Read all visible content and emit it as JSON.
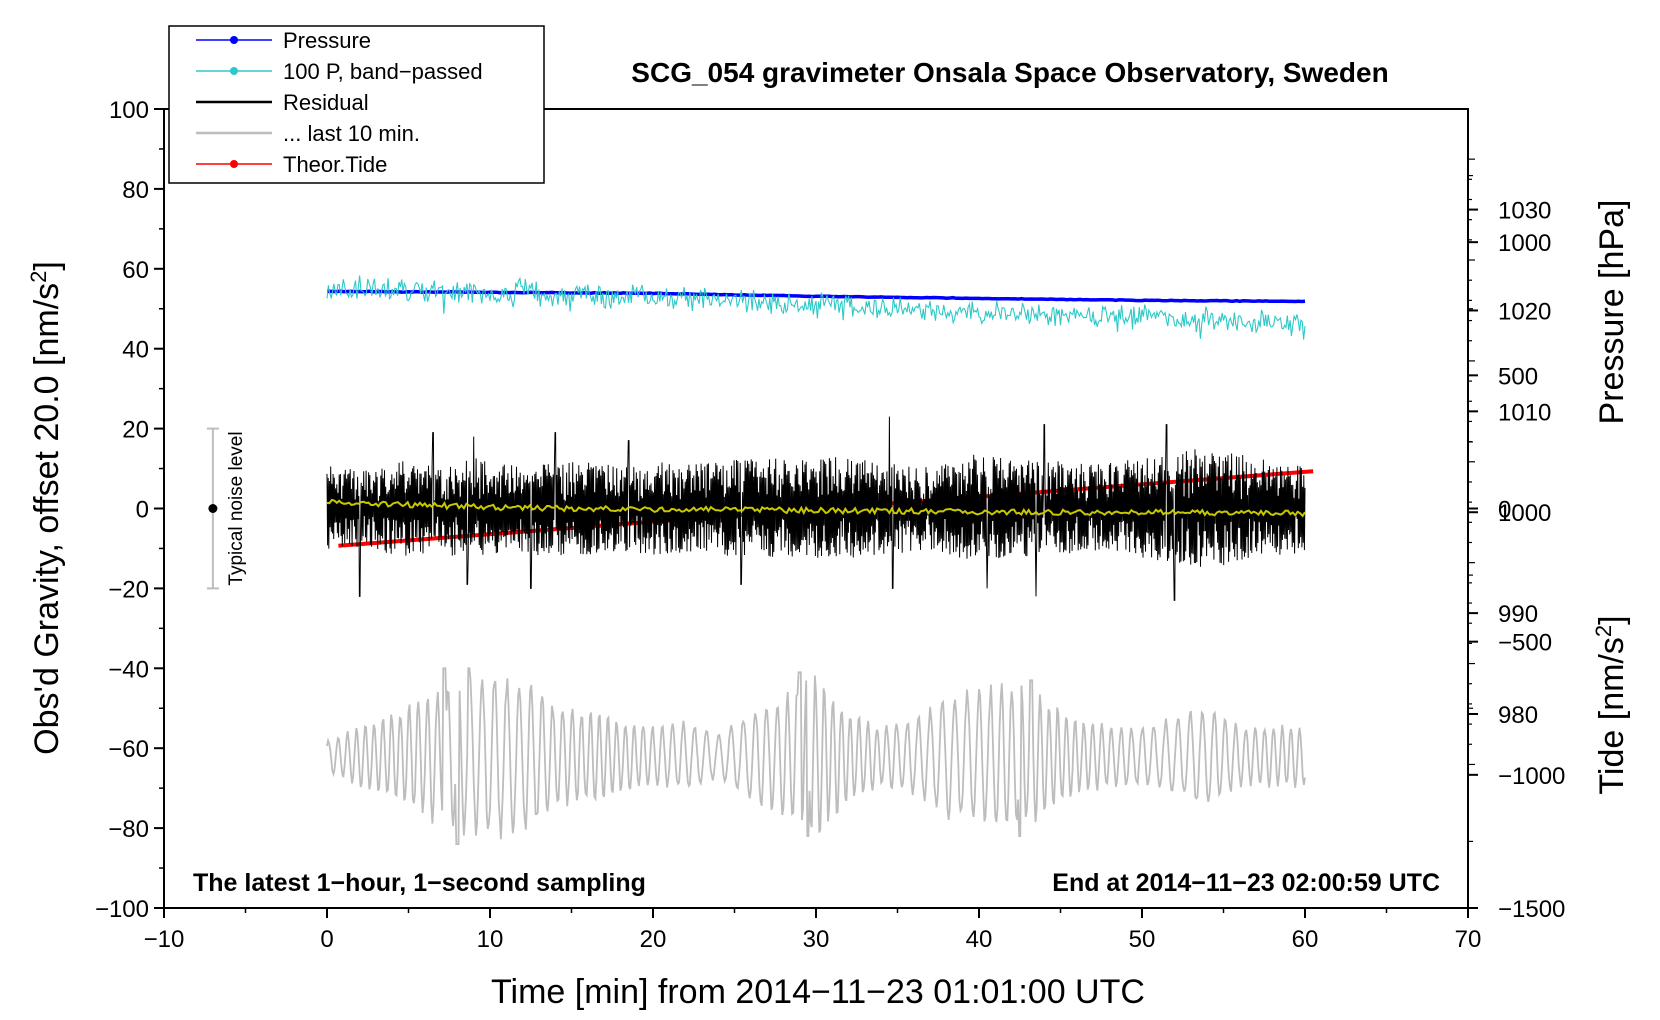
{
  "chart_data": {
    "type": "line",
    "title": "SCG_054 gravimeter Onsala Space Observatory, Sweden",
    "xlabel": "Time [min] from 2014−11−23 01:01:00 UTC",
    "ylabel_left": "Obs'd Gravity, offset 20.0 [nm/s",
    "ylabel_left_sup": "2",
    "ylabel_left_suffix": "]",
    "ylabel_pressure": "Pressure [hPa]",
    "ylabel_tide": "Tide [nm/s",
    "ylabel_tide_sup": "2",
    "ylabel_tide_suffix": "]",
    "xlim": [
      -10,
      70
    ],
    "ylim": [
      -100,
      100
    ],
    "x_ticks": [
      {
        "value": -10,
        "label": "−10"
      },
      {
        "value": 0,
        "label": "0"
      },
      {
        "value": 10,
        "label": "10"
      },
      {
        "value": 20,
        "label": "20"
      },
      {
        "value": 30,
        "label": "30"
      },
      {
        "value": 40,
        "label": "40"
      },
      {
        "value": 50,
        "label": "50"
      },
      {
        "value": 60,
        "label": "60"
      },
      {
        "value": 70,
        "label": "70"
      }
    ],
    "y_ticks": [
      {
        "value": 100,
        "label": "100"
      },
      {
        "value": 80,
        "label": "80"
      },
      {
        "value": 60,
        "label": "60"
      },
      {
        "value": 40,
        "label": "40"
      },
      {
        "value": 20,
        "label": "20"
      },
      {
        "value": 0,
        "label": "0"
      },
      {
        "value": -20,
        "label": "−20"
      },
      {
        "value": -40,
        "label": "−40"
      },
      {
        "value": -60,
        "label": "−60"
      },
      {
        "value": -80,
        "label": "−80"
      },
      {
        "value": -100,
        "label": "−100"
      }
    ],
    "pressure_axis": {
      "ylim": [
        960.77,
        1039.97
      ],
      "ticks": [
        {
          "value": 1030,
          "label": "1030"
        },
        {
          "value": 1020,
          "label": "1020"
        },
        {
          "value": 1010,
          "label": "1010"
        },
        {
          "value": 1000,
          "label": "1000"
        },
        {
          "value": 990,
          "label": "990"
        },
        {
          "value": 980,
          "label": "980"
        }
      ]
    },
    "tide_axis": {
      "ylim": [
        -1500,
        1500
      ],
      "ticks": [
        {
          "value": 1000,
          "label": "1000"
        },
        {
          "value": 500,
          "label": "500"
        },
        {
          "value": 0,
          "label": "0"
        },
        {
          "value": -500,
          "label": "−500"
        },
        {
          "value": -1000,
          "label": "−1000"
        },
        {
          "value": -1500,
          "label": "−1500"
        }
      ]
    },
    "legend": {
      "position": "top-left",
      "entries": [
        {
          "label": "Pressure",
          "color": "#0000ff",
          "marker": true
        },
        {
          "label": "100 P, band−passed",
          "color": "#2ec8c8",
          "marker": true
        },
        {
          "label": "Residual",
          "color": "#000000",
          "marker": false
        },
        {
          "label": "... last 10 min.",
          "color": "#bdbdbd",
          "marker": false
        },
        {
          "label": "Theor.Tide",
          "color": "#ff0000",
          "marker": true
        }
      ]
    },
    "annotations": {
      "left": "The latest 1−hour, 1−second sampling",
      "right": "End at 2014−11−23 02:00:59 UTC",
      "noise_label": "Typical noise level",
      "noise_center": 0,
      "noise_range": [
        -20,
        20
      ],
      "noise_x": -7
    },
    "series": [
      {
        "name": "Pressure",
        "axis": "pressure",
        "color": "#0000ff",
        "x": [
          0,
          10,
          20,
          30,
          40,
          50,
          60
        ],
        "values": [
          1021.9,
          1021.8,
          1021.7,
          1021.4,
          1021.2,
          1021.0,
          1020.9
        ]
      },
      {
        "name": "100 P, band−passed",
        "axis": "left",
        "color": "#2ec8c8",
        "x_start": 0,
        "x_end": 60,
        "trend": [
          55,
          54,
          53,
          51,
          49,
          48,
          46
        ],
        "amplitude": 2.5
      },
      {
        "name": "Residual",
        "axis": "left",
        "color": "#000000",
        "x_start": 0,
        "x_end": 60,
        "trend": [
          0,
          0,
          0,
          0,
          0,
          0,
          0
        ],
        "envelope": [
          11,
          10,
          12,
          11,
          13,
          11,
          12,
          12,
          11,
          12,
          11,
          12,
          13,
          12,
          13,
          12,
          11,
          11,
          14,
          12,
          12,
          11,
          12,
          13,
          15,
          14,
          12,
          11
        ],
        "peaks": [
          {
            "x": 34.5,
            "value": 23
          },
          {
            "x": 34.7,
            "value": -20
          },
          {
            "x": 51.5,
            "value": 21
          },
          {
            "x": 52,
            "value": -23
          },
          {
            "x": 2,
            "value": -22
          },
          {
            "x": 6.5,
            "value": 19
          },
          {
            "x": 14,
            "value": 19
          },
          {
            "x": 44,
            "value": 21
          },
          {
            "x": 8.6,
            "value": -19
          },
          {
            "x": 40.5,
            "value": -20
          },
          {
            "x": 43.5,
            "value": -22
          },
          {
            "x": 25.4,
            "value": -19
          },
          {
            "x": 9,
            "value": 18
          },
          {
            "x": 18.5,
            "value": 17
          },
          {
            "x": 12.5,
            "value": -20
          }
        ]
      },
      {
        "name": "Residual smoothed",
        "axis": "left",
        "color": "#c8c800",
        "x": [
          0,
          10,
          20,
          30,
          40,
          50,
          60
        ],
        "values": [
          1.5,
          0.3,
          -0.2,
          -0.5,
          -0.8,
          -1.0,
          -1.2
        ]
      },
      {
        "name": "... last 10 min.",
        "axis": "left",
        "color": "#bdbdbd",
        "x_start": 0,
        "x_end": 60,
        "center": -62,
        "envelope": [
          4,
          8,
          12,
          16,
          20,
          22,
          21,
          14,
          12,
          10,
          8,
          9,
          6,
          12,
          16,
          22,
          12,
          8,
          10,
          16,
          18,
          20,
          16,
          10,
          8,
          8,
          10,
          14,
          8,
          8,
          8
        ],
        "peaks": [
          {
            "x": 7.2,
            "value": -40
          },
          {
            "x": 8.7,
            "value": -40
          },
          {
            "x": 8,
            "value": -84
          },
          {
            "x": 29.5,
            "value": -82
          },
          {
            "x": 42.5,
            "value": -82
          },
          {
            "x": 43.2,
            "value": -43
          },
          {
            "x": 29,
            "value": -41
          }
        ]
      },
      {
        "name": "Theor.Tide",
        "axis": "tide",
        "color": "#ff0000",
        "x": [
          0.7,
          60.5
        ],
        "values": [
          -140,
          140
        ]
      }
    ]
  }
}
